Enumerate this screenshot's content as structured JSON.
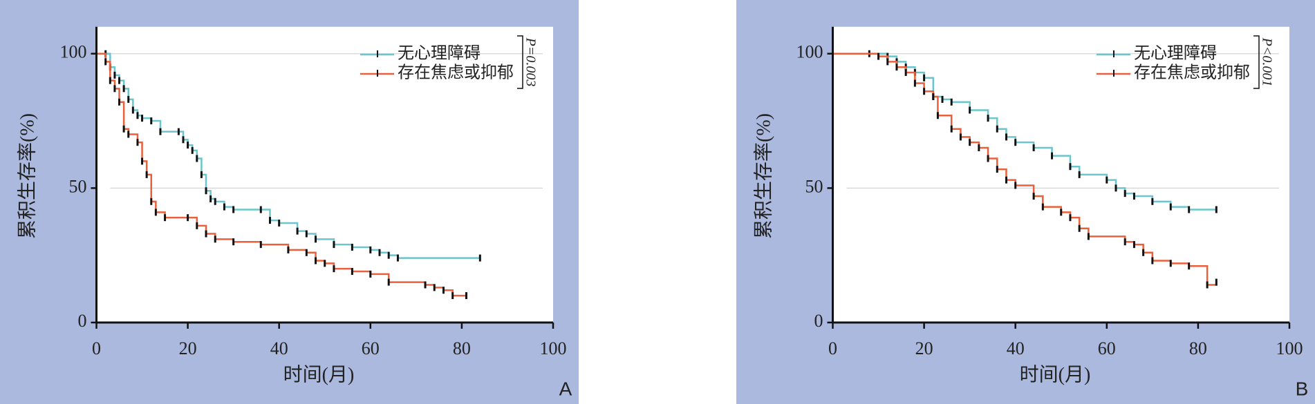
{
  "chart_data": [
    {
      "type": "line",
      "step": true,
      "panel_label": "A",
      "x_label": "时间(月)",
      "y_label": "累积生存率(%)",
      "annotation": "P=0.003",
      "xlim": [
        0,
        100
      ],
      "xticks": [
        0,
        20,
        40,
        60,
        80,
        100
      ],
      "ylim": [
        0,
        110
      ],
      "yticks": [
        0,
        50,
        100
      ],
      "grid": true,
      "series": [
        {
          "name": "无心理障碍",
          "color": "#6cc5cc",
          "x": [
            0,
            2,
            3,
            4,
            5,
            6,
            7,
            8,
            9,
            10,
            12,
            14,
            18,
            19,
            20,
            21,
            22,
            23,
            24,
            25,
            26,
            28,
            30,
            36,
            38,
            40,
            44,
            46,
            48,
            52,
            56,
            60,
            62,
            64,
            66,
            84
          ],
          "values": [
            100,
            100,
            95,
            92,
            90,
            87,
            83,
            79,
            77,
            76,
            75,
            71,
            71,
            68,
            66,
            64,
            61,
            55,
            49,
            46,
            45,
            43,
            42,
            42,
            38,
            37,
            34,
            33,
            31,
            29,
            28,
            27,
            26,
            25,
            24,
            24
          ]
        },
        {
          "name": "存在焦虑或抑郁",
          "color": "#e8603c",
          "x": [
            0,
            2,
            3,
            4,
            5,
            6,
            7,
            9,
            10,
            11,
            12,
            13,
            15,
            20,
            22,
            24,
            26,
            30,
            36,
            42,
            46,
            48,
            50,
            52,
            56,
            60,
            64,
            72,
            74,
            76,
            78,
            81
          ],
          "values": [
            100,
            97,
            90,
            87,
            82,
            72,
            70,
            67,
            60,
            55,
            45,
            41,
            39,
            39,
            36,
            33,
            31,
            30,
            29,
            27,
            26,
            23,
            22,
            20,
            19,
            18,
            15,
            14,
            13,
            12,
            10,
            10
          ]
        }
      ]
    },
    {
      "type": "line",
      "step": true,
      "panel_label": "B",
      "x_label": "时间(月)",
      "y_label": "累积生存率(%)",
      "annotation": "P<0.001",
      "xlim": [
        0,
        100
      ],
      "xticks": [
        0,
        20,
        40,
        60,
        80,
        100
      ],
      "ylim": [
        0,
        110
      ],
      "yticks": [
        0,
        50,
        100
      ],
      "grid": true,
      "series": [
        {
          "name": "无心理障碍",
          "color": "#6cc5cc",
          "x": [
            0,
            8,
            12,
            14,
            16,
            18,
            20,
            22,
            24,
            26,
            30,
            34,
            36,
            38,
            40,
            44,
            48,
            52,
            54,
            60,
            62,
            64,
            66,
            70,
            74,
            78,
            84
          ],
          "values": [
            100,
            100,
            99,
            97,
            95,
            93,
            91,
            84,
            83,
            82,
            79,
            76,
            72,
            69,
            67,
            65,
            62,
            58,
            55,
            53,
            50,
            48,
            47,
            45,
            43,
            42,
            42
          ]
        },
        {
          "name": "存在焦虑或抑郁",
          "color": "#e8603c",
          "x": [
            0,
            10,
            12,
            14,
            16,
            18,
            20,
            22,
            23,
            26,
            28,
            30,
            32,
            34,
            36,
            38,
            40,
            44,
            46,
            50,
            52,
            54,
            56,
            64,
            66,
            68,
            70,
            74,
            78,
            82,
            84
          ],
          "values": [
            100,
            99,
            97,
            95,
            93,
            89,
            86,
            84,
            77,
            72,
            69,
            67,
            65,
            61,
            57,
            53,
            51,
            47,
            43,
            41,
            39,
            35,
            32,
            30,
            29,
            26,
            23,
            22,
            21,
            14,
            15
          ]
        }
      ]
    }
  ]
}
